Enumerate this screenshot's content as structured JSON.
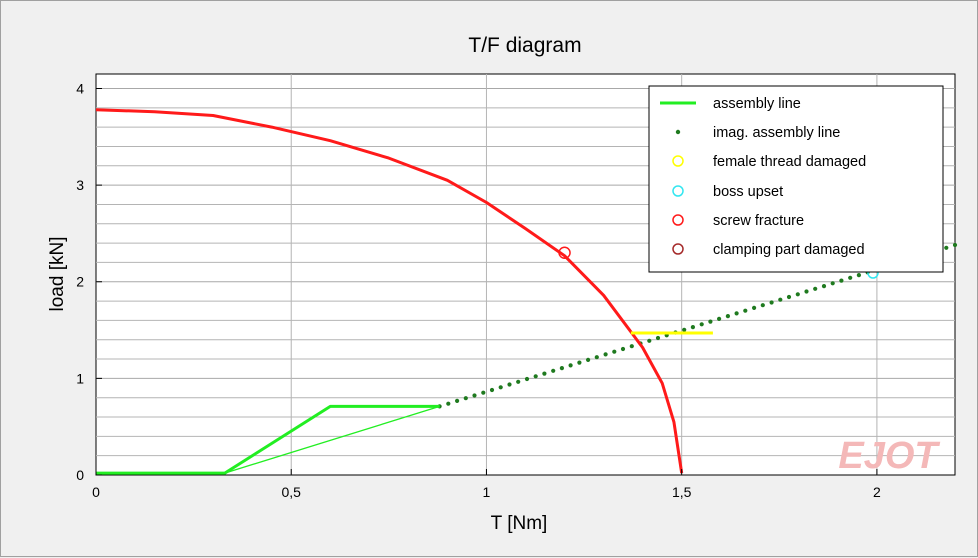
{
  "chart_data": {
    "type": "line",
    "title": "T/F diagram",
    "xlabel": "T [Nm]",
    "ylabel": "load [kN]",
    "xlim": [
      0,
      2.2
    ],
    "ylim": [
      0,
      4.15
    ],
    "x_ticks": [
      {
        "v": 0,
        "label": "0"
      },
      {
        "v": 0.5,
        "label": "0,5"
      },
      {
        "v": 1,
        "label": "1"
      },
      {
        "v": 1.5,
        "label": "1,5"
      },
      {
        "v": 2,
        "label": "2"
      }
    ],
    "y_ticks": [
      {
        "v": 0,
        "label": "0"
      },
      {
        "v": 1,
        "label": "1"
      },
      {
        "v": 2,
        "label": "2"
      },
      {
        "v": 3,
        "label": "3"
      },
      {
        "v": 4,
        "label": "4"
      }
    ],
    "grid": true,
    "legend_position": "top-right",
    "watermark": "EJOT",
    "colors": {
      "assembly": "#22ee22",
      "imag_assembly": "#1f7a1f",
      "female_thread": "#ffff00",
      "boss": "#33e6f0",
      "screw": "#ff1a1a",
      "clamping": "#a52a2a",
      "watermark": "#f4b8b8"
    },
    "series": [
      {
        "name": "assembly line",
        "points": [
          [
            0,
            0.02
          ],
          [
            0.33,
            0.02
          ],
          [
            0.6,
            0.71
          ],
          [
            0.88,
            0.71
          ]
        ],
        "thin_points": [
          [
            0.33,
            0.02
          ],
          [
            0.88,
            0.71
          ]
        ]
      },
      {
        "name": "imag. assembly line",
        "x_start": 0.88,
        "y_start": 0.71,
        "x_end": 2.2,
        "y_end": 2.38,
        "count": 60
      },
      {
        "name": "female thread damaged",
        "segment": [
          [
            1.37,
            1.47
          ],
          [
            1.58,
            1.47
          ]
        ]
      },
      {
        "name": "boss upset",
        "points": [
          [
            1.99,
            2.09
          ]
        ]
      },
      {
        "name": "screw fracture",
        "points": [
          [
            0,
            3.78
          ],
          [
            0.15,
            3.76
          ],
          [
            0.3,
            3.72
          ],
          [
            0.45,
            3.6
          ],
          [
            0.6,
            3.46
          ],
          [
            0.75,
            3.28
          ],
          [
            0.9,
            3.05
          ],
          [
            1.0,
            2.82
          ],
          [
            1.1,
            2.55
          ],
          [
            1.2,
            2.27
          ],
          [
            1.3,
            1.86
          ],
          [
            1.4,
            1.32
          ],
          [
            1.45,
            0.95
          ],
          [
            1.48,
            0.55
          ],
          [
            1.5,
            0.02
          ]
        ],
        "marker": [
          1.2,
          2.3
        ]
      },
      {
        "name": "clamping part damaged",
        "points": []
      }
    ]
  }
}
